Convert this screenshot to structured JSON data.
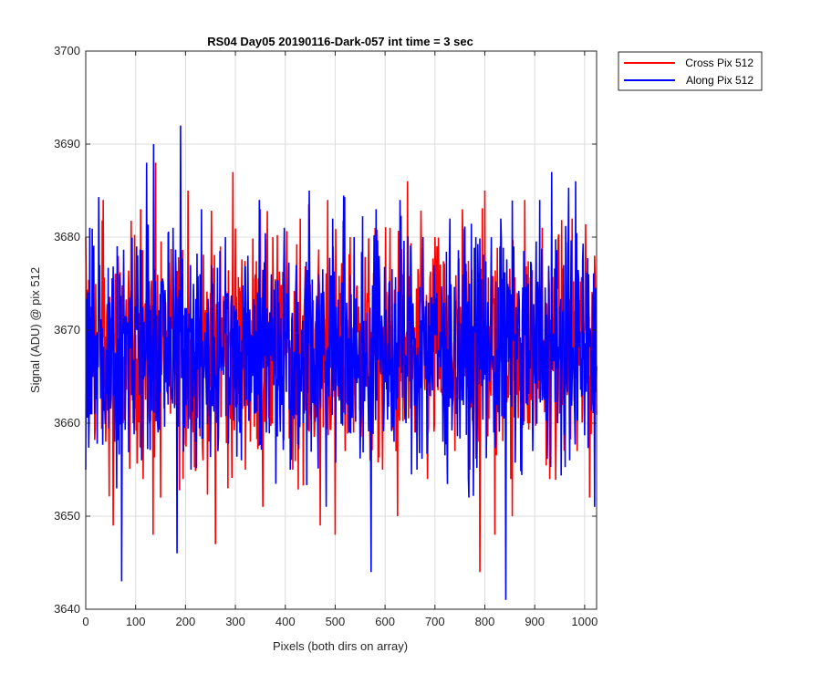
{
  "chart_data": {
    "type": "line",
    "title": "RS04 Day05 20190116-Dark-057 int time = 3 sec",
    "xlabel": "Pixels (both dirs on array)",
    "ylabel": "Signal (ADU) @ pix 512",
    "xlim": [
      0,
      1024
    ],
    "ylim": [
      3640,
      3700
    ],
    "xticks": [
      0,
      100,
      200,
      300,
      400,
      500,
      600,
      700,
      800,
      900,
      1000
    ],
    "yticks": [
      3640,
      3650,
      3660,
      3670,
      3680,
      3690,
      3700
    ],
    "grid": true,
    "legend_position": "outside-top-right",
    "series": [
      {
        "name": "Cross Pix 512",
        "color": "#ff0000",
        "points_x": [
          0,
          5,
          15,
          25,
          35,
          40,
          45,
          55,
          60,
          70,
          80,
          95,
          110,
          115,
          125,
          135,
          140,
          150,
          160,
          170,
          180,
          195,
          205,
          215,
          225,
          235,
          250,
          260,
          270,
          285,
          295,
          305,
          315,
          330,
          340,
          350,
          355,
          365,
          375,
          390,
          400,
          415,
          430,
          445,
          460,
          470,
          485,
          500,
          510,
          520,
          530,
          540,
          555,
          570,
          585,
          595,
          610,
          625,
          635,
          645,
          660,
          670,
          685,
          700,
          715,
          725,
          740,
          755,
          770,
          780,
          790,
          800,
          810,
          820,
          830,
          845,
          855,
          865,
          880,
          890,
          900,
          915,
          930,
          945,
          960,
          975,
          985,
          1000,
          1010,
          1020
        ],
        "points_y": [
          3680,
          3664,
          3675,
          3666,
          3684,
          3658,
          3672,
          3649,
          3676,
          3662,
          3671,
          3660,
          3683,
          3654,
          3670,
          3648,
          3688,
          3652,
          3673,
          3661,
          3676,
          3654,
          3685,
          3659,
          3668,
          3656,
          3674,
          3647,
          3679,
          3653,
          3687,
          3662,
          3670,
          3658,
          3676,
          3683,
          3651,
          3669,
          3680,
          3660,
          3673,
          3655,
          3682,
          3661,
          3670,
          3649,
          3684,
          3648,
          3674,
          3657,
          3680,
          3663,
          3669,
          3656,
          3678,
          3655,
          3681,
          3650,
          3676,
          3686,
          3659,
          3672,
          3654,
          3680,
          3663,
          3671,
          3657,
          3683,
          3655,
          3672,
          3644,
          3685,
          3665,
          3648,
          3679,
          3663,
          3650,
          3674,
          3684,
          3660,
          3669,
          3681,
          3654,
          3676,
          3662,
          3682,
          3657,
          3670,
          3652,
          3678
        ]
      },
      {
        "name": "Along Pix 512",
        "color": "#0000ff",
        "points_x": [
          0,
          8,
          18,
          28,
          38,
          48,
          58,
          68,
          72,
          82,
          92,
          102,
          112,
          122,
          132,
          136,
          145,
          155,
          165,
          175,
          183,
          190,
          200,
          210,
          220,
          232,
          242,
          255,
          265,
          280,
          290,
          300,
          312,
          325,
          338,
          348,
          362,
          372,
          386,
          398,
          410,
          422,
          436,
          448,
          458,
          472,
          482,
          495,
          505,
          518,
          528,
          538,
          552,
          562,
          572,
          582,
          598,
          608,
          618,
          630,
          642,
          652,
          664,
          676,
          690,
          704,
          716,
          730,
          742,
          756,
          768,
          782,
          794,
          806,
          818,
          832,
          842,
          858,
          870,
          884,
          896,
          910,
          922,
          934,
          946,
          958,
          970,
          982,
          994,
          1008,
          1020
        ],
        "points_y": [
          3655,
          3681,
          3661,
          3677,
          3662,
          3673,
          3658,
          3676,
          3643,
          3670,
          3663,
          3679,
          3656,
          3688,
          3665,
          3690,
          3659,
          3674,
          3662,
          3681,
          3646,
          3692,
          3663,
          3677,
          3658,
          3683,
          3662,
          3675,
          3657,
          3680,
          3664,
          3672,
          3656,
          3678,
          3661,
          3684,
          3659,
          3676,
          3664,
          3681,
          3655,
          3677,
          3660,
          3685,
          3662,
          3674,
          3651,
          3682,
          3664,
          3676,
          3659,
          3680,
          3661,
          3671,
          3644,
          3683,
          3662,
          3675,
          3658,
          3684,
          3660,
          3677,
          3655,
          3680,
          3663,
          3674,
          3658,
          3682,
          3661,
          3676,
          3652,
          3680,
          3664,
          3673,
          3659,
          3682,
          3641,
          3679,
          3664,
          3676,
          3657,
          3684,
          3663,
          3687,
          3660,
          3677,
          3656,
          3686,
          3663,
          3676,
          3651
        ]
      }
    ]
  }
}
